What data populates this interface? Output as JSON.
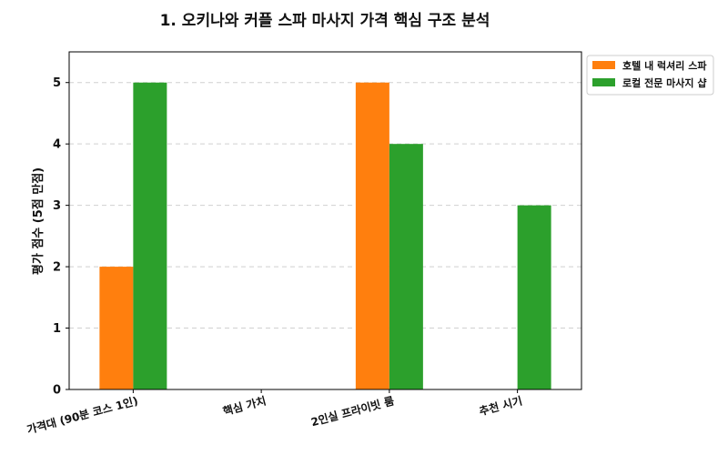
{
  "chart_data": {
    "type": "bar",
    "title": "1. 오키나와 커플 스파 마사지 가격 핵심 구조 분석",
    "xlabel": "",
    "ylabel": "평가 점수 (5점 만점)",
    "categories": [
      "가격대 (90분 코스 1인)",
      "핵심 가치",
      "2인실 프라이빗 룸",
      "추천 시기"
    ],
    "series": [
      {
        "name": "호텔 내 럭셔리 스파",
        "color": "#ff7f0e",
        "values": [
          2,
          0,
          5,
          0
        ]
      },
      {
        "name": "로컬 전문 마사지 샵",
        "color": "#2ca02c",
        "values": [
          5,
          0,
          4,
          3
        ]
      }
    ],
    "ylim": [
      0,
      5.5
    ],
    "yticks": [
      "0",
      "1",
      "2",
      "3",
      "4",
      "5"
    ],
    "grid": "y-dashed",
    "legend_position": "outside-top-right"
  }
}
